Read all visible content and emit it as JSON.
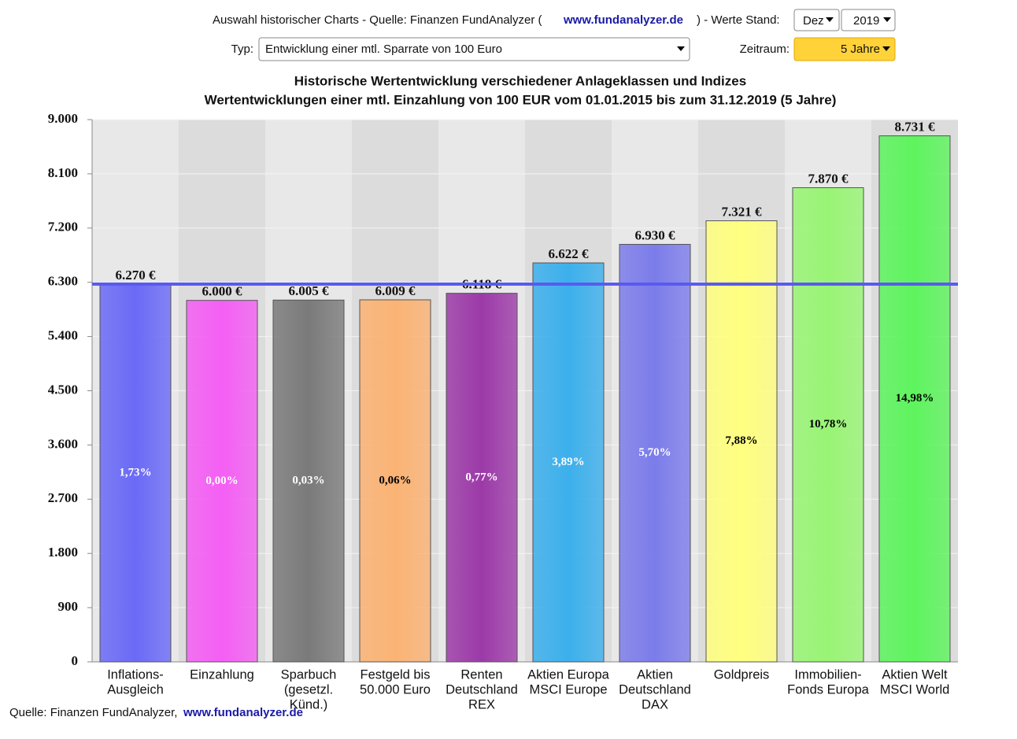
{
  "header": {
    "text_before": "Auswahl historischer Charts - Quelle: Finanzen FundAnalyzer (",
    "link": "www.fundanalyzer.de",
    "text_after": ") - Werte Stand:",
    "month": "Dez",
    "year": "2019"
  },
  "controls": {
    "type_label": "Typ:",
    "type_value": "Entwicklung einer mtl. Sparrate von 100 Euro",
    "period_label": "Zeitraum:",
    "period_value": "5 Jahre"
  },
  "footer": {
    "text": "Quelle: Finanzen FundAnalyzer,",
    "link": "www.fundanalyzer.de"
  },
  "chart_data": {
    "type": "bar",
    "title": "Historische Wertentwicklung verschiedener Anlageklassen und Indizes",
    "subtitle": "Wertentwicklungen einer mtl. Einzahlung von 100 EUR vom 01.01.2015 bis zum 31.12.2019 (5 Jahre)",
    "categories": [
      [
        "Inflations-",
        "Ausgleich"
      ],
      [
        "Einzahlung"
      ],
      [
        "Sparbuch",
        "(gesetzl.",
        "Künd.)"
      ],
      [
        "Festgeld bis",
        "50.000 Euro"
      ],
      [
        "Renten",
        "Deutschland",
        "REX"
      ],
      [
        "Aktien Europa",
        "MSCI Europe"
      ],
      [
        "Aktien",
        "Deutschland",
        "DAX"
      ],
      [
        "Goldpreis"
      ],
      [
        "Immobilien-",
        "Fonds Europa"
      ],
      [
        "Aktien Welt",
        "MSCI World"
      ]
    ],
    "values": [
      6270,
      6000,
      6005,
      6009,
      6118,
      6622,
      6930,
      7321,
      7870,
      8731
    ],
    "value_labels": [
      "6.270 €",
      "6.000 €",
      "6.005 €",
      "6.009 €",
      "6.118 €",
      "6.622 €",
      "6.930 €",
      "7.321 €",
      "7.870 €",
      "8.731 €"
    ],
    "rates": [
      "1,73%",
      "0,00%",
      "0,03%",
      "0,06%",
      "0,77%",
      "3,89%",
      "5,70%",
      "7,88%",
      "10,78%",
      "14,98%"
    ],
    "colors": [
      "#6a6af6",
      "#f45ff4",
      "#7a7a7a",
      "#fbb374",
      "#9c3aa8",
      "#3cb0ec",
      "#7c7cea",
      "#ffff80",
      "#98f474",
      "#5ef45e"
    ],
    "rate_colors": [
      "#fff",
      "#fff",
      "#fff",
      "#000",
      "#fff",
      "#fff",
      "#fff",
      "#000",
      "#000",
      "#000"
    ],
    "reference_line": 6270,
    "reference_color": "#5a5af0",
    "ylim": [
      0,
      9000
    ],
    "yticks": [
      0,
      900,
      {
        "value": 1800,
        "label": "1.800"
      },
      {
        "value": 2700,
        "label": "2.700"
      },
      {
        "value": 3600,
        "label": "3.600"
      },
      {
        "value": 4500,
        "label": "4.500"
      },
      {
        "value": 5400,
        "label": "5.400"
      },
      {
        "value": 6300,
        "label": "6.300"
      },
      {
        "value": 7200,
        "label": "7.200"
      },
      {
        "value": 8100,
        "label": "8.100"
      },
      {
        "value": 9000,
        "label": "9.000"
      }
    ],
    "grid": true
  }
}
